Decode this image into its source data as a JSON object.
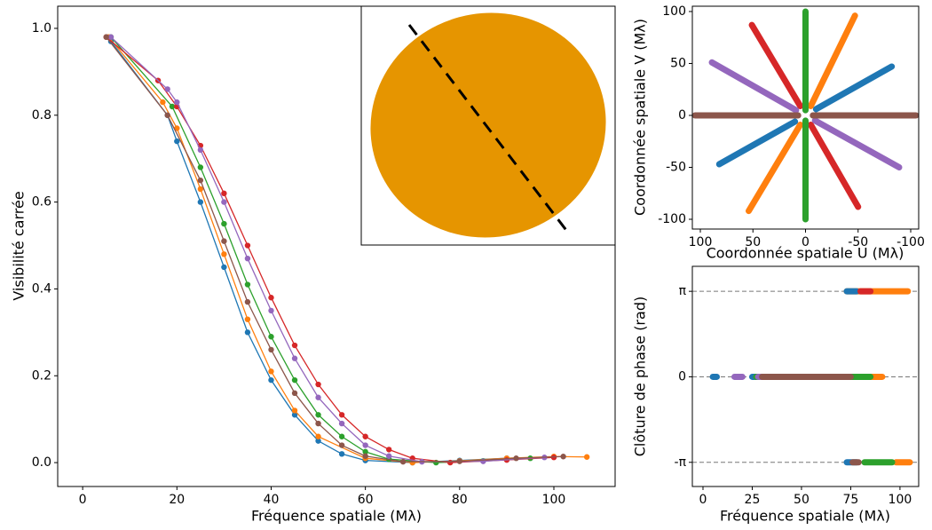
{
  "chart_data": [
    {
      "type": "line",
      "markers": true,
      "grid": false,
      "x_label": "Fréquence spatiale (Mλ)",
      "y_label": "Visibilité carrée",
      "xlim": [
        -5.3,
        113
      ],
      "ylim": [
        -0.055,
        1.051
      ],
      "xticks": [
        0,
        20,
        40,
        60,
        80,
        100
      ],
      "yticks": [
        {
          "value": 0,
          "label": "0.0"
        },
        0.2,
        0.4,
        0.6,
        0.8,
        {
          "value": 1,
          "label": "1.0"
        }
      ],
      "series": [
        {
          "color": "#1f77b4",
          "x": [
            6,
            18,
            20,
            25,
            30,
            35,
            40,
            45,
            50,
            55,
            60,
            70,
            80,
            90,
            100
          ],
          "values": [
            0.97,
            0.8,
            0.74,
            0.6,
            0.45,
            0.3,
            0.19,
            0.11,
            0.05,
            0.02,
            0.005,
            0.0,
            0.005,
            0.01,
            0.013
          ]
        },
        {
          "color": "#ff7f0e",
          "x": [
            5.5,
            17,
            20,
            25,
            30,
            35,
            40,
            45,
            50,
            60,
            70,
            80,
            90,
            100,
            107
          ],
          "values": [
            0.98,
            0.83,
            0.77,
            0.63,
            0.48,
            0.33,
            0.21,
            0.12,
            0.06,
            0.01,
            0.0,
            0.004,
            0.01,
            0.014,
            0.013
          ]
        },
        {
          "color": "#2ca02c",
          "x": [
            6,
            19,
            25,
            30,
            35,
            40,
            45,
            50,
            55,
            60,
            65,
            75,
            85,
            95
          ],
          "values": [
            0.98,
            0.82,
            0.68,
            0.55,
            0.41,
            0.29,
            0.19,
            0.11,
            0.06,
            0.025,
            0.008,
            0.0,
            0.004,
            0.01
          ]
        },
        {
          "color": "#d62728",
          "x": [
            5,
            16,
            20,
            25,
            30,
            35,
            40,
            45,
            50,
            55,
            60,
            65,
            70,
            78,
            90,
            100
          ],
          "values": [
            0.98,
            0.88,
            0.82,
            0.73,
            0.62,
            0.5,
            0.38,
            0.27,
            0.18,
            0.11,
            0.06,
            0.03,
            0.01,
            0.0,
            0.006,
            0.012
          ]
        },
        {
          "color": "#9467bd",
          "x": [
            6,
            18,
            20,
            25,
            30,
            35,
            40,
            45,
            50,
            55,
            60,
            65,
            72,
            85,
            98
          ],
          "values": [
            0.98,
            0.86,
            0.83,
            0.72,
            0.6,
            0.47,
            0.35,
            0.24,
            0.15,
            0.09,
            0.04,
            0.015,
            0.002,
            0.003,
            0.012
          ]
        },
        {
          "color": "#8c564b",
          "x": [
            5,
            18,
            25,
            30,
            35,
            40,
            45,
            50,
            55,
            60,
            68,
            80,
            92,
            102
          ],
          "values": [
            0.98,
            0.8,
            0.65,
            0.51,
            0.37,
            0.26,
            0.16,
            0.09,
            0.04,
            0.015,
            0.002,
            0.003,
            0.01,
            0.014
          ]
        }
      ]
    },
    {
      "type": "scatter",
      "grid": false,
      "x_label": "Coordonnée spatiale U (Mλ)",
      "y_label": "Coordonnée spatiale V (Mλ)",
      "xlim": [
        107.6,
        -107.6
      ],
      "ylim": [
        -109.4,
        105.1
      ],
      "xticks": [
        100,
        50,
        0,
        -50,
        -100
      ],
      "yticks": [
        -100,
        -50,
        0,
        50,
        100
      ],
      "series": [
        {
          "color": "#1f77b4",
          "x": [
            -10,
            -82,
            null,
            10,
            82
          ],
          "values": [
            6,
            47,
            null,
            -6,
            -47
          ]
        },
        {
          "color": "#ff7f0e",
          "x": [
            -5,
            -47,
            null,
            5,
            54
          ],
          "values": [
            9,
            96,
            null,
            -9,
            -92
          ]
        },
        {
          "color": "#d62728",
          "x": [
            5,
            51,
            null,
            -5,
            -50
          ],
          "values": [
            9,
            87,
            null,
            -9,
            -88
          ]
        },
        {
          "color": "#9467bd",
          "x": [
            9,
            89,
            null,
            -9,
            -89
          ],
          "values": [
            5,
            51,
            null,
            -5,
            -50
          ]
        },
        {
          "color": "#2ca02c",
          "x": [
            0,
            0,
            null,
            0,
            0
          ],
          "values": [
            5,
            100,
            null,
            -5,
            -100
          ]
        },
        {
          "color": "#8c564b",
          "x": [
            7,
            105,
            null,
            -7,
            -105
          ],
          "values": [
            0,
            0,
            null,
            0,
            0
          ]
        }
      ]
    },
    {
      "type": "scatter",
      "grid": "y",
      "x_label": "Fréquence spatiale (Mλ)",
      "y_label": "Clôture de phase (rad)",
      "xlim": [
        -5.4,
        109.5
      ],
      "ylim": [
        -4.03,
        4.06
      ],
      "xticks": [
        0,
        25,
        50,
        75,
        100
      ],
      "yticks": [
        {
          "value": -3.14159,
          "label": "-π"
        },
        0,
        {
          "value": 3.14159,
          "label": "π"
        }
      ],
      "series": [
        {
          "color": "#ff7f0e",
          "x": [
            85,
            91,
            null,
            73,
            104,
            null,
            98,
            105
          ],
          "values": [
            0,
            0,
            null,
            3.14159,
            3.14159,
            null,
            -3.14159,
            -3.14159
          ]
        },
        {
          "color": "#1f77b4",
          "x": [
            5,
            7,
            null,
            25,
            77,
            null,
            73,
            78,
            null,
            73,
            78
          ],
          "values": [
            0,
            0,
            null,
            0,
            0,
            null,
            3.14159,
            3.14159,
            null,
            -3.14159,
            -3.14159
          ]
        },
        {
          "color": "#2ca02c",
          "x": [
            27,
            85,
            null,
            82,
            96
          ],
          "values": [
            0,
            0,
            null,
            -3.14159,
            -3.14159
          ]
        },
        {
          "color": "#d62728",
          "x": [
            80,
            85
          ],
          "values": [
            3.14159,
            3.14159
          ]
        },
        {
          "color": "#9467bd",
          "x": [
            16,
            20,
            null,
            28,
            70
          ],
          "values": [
            0,
            0,
            null,
            0,
            0
          ]
        },
        {
          "color": "#8c564b",
          "x": [
            30,
            75,
            null,
            76,
            79
          ],
          "values": [
            0,
            0,
            null,
            -3.14159,
            -3.14159
          ]
        }
      ]
    }
  ]
}
